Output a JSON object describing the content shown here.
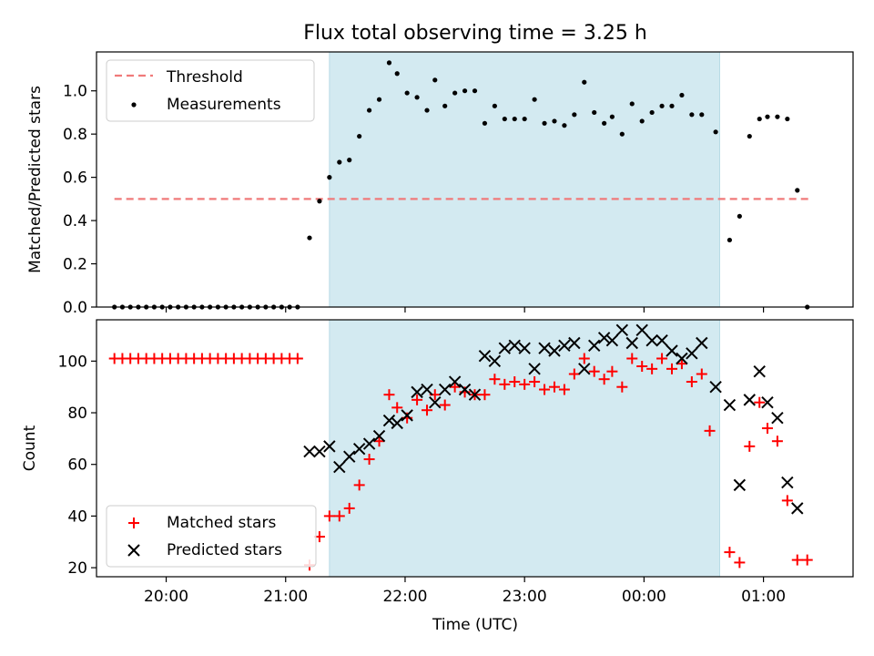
{
  "chart_data": [
    {
      "type": "scatter",
      "title": "Flux total observing time = 3.25 h",
      "ylabel": "Matched/Predicted stars",
      "xlabel": "",
      "xlim": [
        "19:25",
        "01:45"
      ],
      "ylim": [
        0,
        1.18
      ],
      "yticks": [
        0.0,
        0.2,
        0.4,
        0.6,
        0.8,
        1.0
      ],
      "ytick_labels": [
        "0.0",
        "0.2",
        "0.4",
        "0.6",
        "0.8",
        "1.0"
      ],
      "grid": false,
      "legend_position": "top-left",
      "observing_window": [
        "21:22",
        "00:38"
      ],
      "threshold": {
        "name": "Threshold",
        "value": 0.5,
        "x_range": [
          "19:34",
          "01:24"
        ],
        "color": "#f07a7a"
      },
      "series": [
        {
          "name": "Measurements",
          "marker": "dot",
          "color": "#000000",
          "points": [
            [
              "19:34",
              0.0
            ],
            [
              "19:38",
              0.0
            ],
            [
              "19:42",
              0.0
            ],
            [
              "19:46",
              0.0
            ],
            [
              "19:50",
              0.0
            ],
            [
              "19:54",
              0.0
            ],
            [
              "19:58",
              0.0
            ],
            [
              "20:02",
              0.0
            ],
            [
              "20:06",
              0.0
            ],
            [
              "20:10",
              0.0
            ],
            [
              "20:14",
              0.0
            ],
            [
              "20:18",
              0.0
            ],
            [
              "20:22",
              0.0
            ],
            [
              "20:26",
              0.0
            ],
            [
              "20:30",
              0.0
            ],
            [
              "20:34",
              0.0
            ],
            [
              "20:38",
              0.0
            ],
            [
              "20:42",
              0.0
            ],
            [
              "20:46",
              0.0
            ],
            [
              "20:50",
              0.0
            ],
            [
              "20:54",
              0.0
            ],
            [
              "20:58",
              0.0
            ],
            [
              "21:02",
              0.0
            ],
            [
              "21:06",
              0.0
            ],
            [
              "21:12",
              0.32
            ],
            [
              "21:17",
              0.49
            ],
            [
              "21:22",
              0.6
            ],
            [
              "21:27",
              0.67
            ],
            [
              "21:32",
              0.68
            ],
            [
              "21:37",
              0.79
            ],
            [
              "21:42",
              0.91
            ],
            [
              "21:47",
              0.96
            ],
            [
              "21:52",
              1.13
            ],
            [
              "21:56",
              1.08
            ],
            [
              "22:01",
              0.99
            ],
            [
              "22:06",
              0.97
            ],
            [
              "22:11",
              0.91
            ],
            [
              "22:15",
              1.05
            ],
            [
              "22:20",
              0.93
            ],
            [
              "22:25",
              0.99
            ],
            [
              "22:30",
              1.0
            ],
            [
              "22:35",
              1.0
            ],
            [
              "22:40",
              0.85
            ],
            [
              "22:45",
              0.93
            ],
            [
              "22:50",
              0.87
            ],
            [
              "22:55",
              0.87
            ],
            [
              "23:00",
              0.87
            ],
            [
              "23:05",
              0.96
            ],
            [
              "23:10",
              0.85
            ],
            [
              "23:15",
              0.86
            ],
            [
              "23:20",
              0.84
            ],
            [
              "23:25",
              0.89
            ],
            [
              "23:30",
              1.04
            ],
            [
              "23:35",
              0.9
            ],
            [
              "23:40",
              0.85
            ],
            [
              "23:44",
              0.88
            ],
            [
              "23:49",
              0.8
            ],
            [
              "23:54",
              0.94
            ],
            [
              "23:59",
              0.86
            ],
            [
              "00:04",
              0.9
            ],
            [
              "00:09",
              0.93
            ],
            [
              "00:14",
              0.93
            ],
            [
              "00:19",
              0.98
            ],
            [
              "00:24",
              0.89
            ],
            [
              "00:29",
              0.89
            ],
            [
              "00:36",
              0.81
            ],
            [
              "00:43",
              0.31
            ],
            [
              "00:48",
              0.42
            ],
            [
              "00:53",
              0.79
            ],
            [
              "00:58",
              0.87
            ],
            [
              "01:02",
              0.88
            ],
            [
              "01:07",
              0.88
            ],
            [
              "01:12",
              0.87
            ],
            [
              "01:17",
              0.54
            ],
            [
              "01:22",
              0.0
            ]
          ]
        }
      ]
    },
    {
      "type": "scatter",
      "title": "",
      "ylabel": "Count",
      "xlabel": "Time (UTC)",
      "xlim": [
        "19:25",
        "01:45"
      ],
      "ylim": [
        16.5,
        116
      ],
      "yticks": [
        20,
        40,
        60,
        80,
        100
      ],
      "ytick_labels": [
        "20",
        "40",
        "60",
        "80",
        "100"
      ],
      "xticks": [
        "20:00",
        "21:00",
        "22:00",
        "23:00",
        "00:00",
        "01:00"
      ],
      "xtick_labels": [
        "20:00",
        "21:00",
        "22:00",
        "23:00",
        "00:00",
        "01:00"
      ],
      "grid": false,
      "legend_position": "bottom-left",
      "observing_window": [
        "21:22",
        "00:38"
      ],
      "series": [
        {
          "name": "Matched stars",
          "marker": "plus",
          "color": "#ff0000",
          "points": [
            [
              "19:34",
              101
            ],
            [
              "19:38",
              101
            ],
            [
              "19:42",
              101
            ],
            [
              "19:46",
              101
            ],
            [
              "19:50",
              101
            ],
            [
              "19:54",
              101
            ],
            [
              "19:58",
              101
            ],
            [
              "20:02",
              101
            ],
            [
              "20:06",
              101
            ],
            [
              "20:10",
              101
            ],
            [
              "20:14",
              101
            ],
            [
              "20:18",
              101
            ],
            [
              "20:22",
              101
            ],
            [
              "20:26",
              101
            ],
            [
              "20:30",
              101
            ],
            [
              "20:34",
              101
            ],
            [
              "20:38",
              101
            ],
            [
              "20:42",
              101
            ],
            [
              "20:46",
              101
            ],
            [
              "20:50",
              101
            ],
            [
              "20:54",
              101
            ],
            [
              "20:58",
              101
            ],
            [
              "21:02",
              101
            ],
            [
              "21:06",
              101
            ],
            [
              "21:12",
              21
            ],
            [
              "21:17",
              32
            ],
            [
              "21:22",
              40
            ],
            [
              "21:27",
              40
            ],
            [
              "21:32",
              43
            ],
            [
              "21:37",
              52
            ],
            [
              "21:42",
              62
            ],
            [
              "21:47",
              69
            ],
            [
              "21:52",
              87
            ],
            [
              "21:56",
              82
            ],
            [
              "22:01",
              78
            ],
            [
              "22:06",
              85
            ],
            [
              "22:11",
              81
            ],
            [
              "22:15",
              87
            ],
            [
              "22:20",
              83
            ],
            [
              "22:25",
              90
            ],
            [
              "22:30",
              88
            ],
            [
              "22:35",
              87
            ],
            [
              "22:40",
              87
            ],
            [
              "22:45",
              93
            ],
            [
              "22:50",
              91
            ],
            [
              "22:55",
              92
            ],
            [
              "23:00",
              91
            ],
            [
              "23:05",
              92
            ],
            [
              "23:10",
              89
            ],
            [
              "23:15",
              90
            ],
            [
              "23:20",
              89
            ],
            [
              "23:25",
              95
            ],
            [
              "23:30",
              101
            ],
            [
              "23:35",
              96
            ],
            [
              "23:40",
              93
            ],
            [
              "23:44",
              96
            ],
            [
              "23:49",
              90
            ],
            [
              "23:54",
              101
            ],
            [
              "23:59",
              98
            ],
            [
              "00:04",
              97
            ],
            [
              "00:09",
              101
            ],
            [
              "00:14",
              97
            ],
            [
              "00:19",
              99
            ],
            [
              "00:24",
              92
            ],
            [
              "00:29",
              95
            ],
            [
              "00:33",
              73
            ],
            [
              "00:43",
              26
            ],
            [
              "00:48",
              22
            ],
            [
              "00:53",
              67
            ],
            [
              "00:58",
              84
            ],
            [
              "01:02",
              74
            ],
            [
              "01:07",
              69
            ],
            [
              "01:12",
              46
            ],
            [
              "01:17",
              23
            ],
            [
              "01:22",
              23
            ]
          ]
        },
        {
          "name": "Predicted stars",
          "marker": "x",
          "color": "#000000",
          "points": [
            [
              "21:12",
              65
            ],
            [
              "21:17",
              65
            ],
            [
              "21:22",
              67
            ],
            [
              "21:27",
              59
            ],
            [
              "21:32",
              63
            ],
            [
              "21:37",
              66
            ],
            [
              "21:42",
              68
            ],
            [
              "21:47",
              71
            ],
            [
              "21:52",
              77
            ],
            [
              "21:56",
              76
            ],
            [
              "22:01",
              79
            ],
            [
              "22:06",
              88
            ],
            [
              "22:11",
              89
            ],
            [
              "22:15",
              84
            ],
            [
              "22:20",
              89
            ],
            [
              "22:25",
              92
            ],
            [
              "22:30",
              89
            ],
            [
              "22:35",
              87
            ],
            [
              "22:40",
              102
            ],
            [
              "22:45",
              100
            ],
            [
              "22:50",
              105
            ],
            [
              "22:55",
              106
            ],
            [
              "23:00",
              105
            ],
            [
              "23:05",
              97
            ],
            [
              "23:10",
              105
            ],
            [
              "23:15",
              104
            ],
            [
              "23:20",
              106
            ],
            [
              "23:25",
              107
            ],
            [
              "23:30",
              97
            ],
            [
              "23:35",
              106
            ],
            [
              "23:40",
              109
            ],
            [
              "23:44",
              108
            ],
            [
              "23:49",
              112
            ],
            [
              "23:54",
              107
            ],
            [
              "23:59",
              112
            ],
            [
              "00:04",
              108
            ],
            [
              "00:09",
              108
            ],
            [
              "00:14",
              104
            ],
            [
              "00:19",
              101
            ],
            [
              "00:24",
              103
            ],
            [
              "00:29",
              107
            ],
            [
              "00:36",
              90
            ],
            [
              "00:43",
              83
            ],
            [
              "00:48",
              52
            ],
            [
              "00:53",
              85
            ],
            [
              "00:58",
              96
            ],
            [
              "01:02",
              84
            ],
            [
              "01:07",
              78
            ],
            [
              "01:12",
              53
            ],
            [
              "01:17",
              43
            ]
          ]
        }
      ]
    }
  ]
}
